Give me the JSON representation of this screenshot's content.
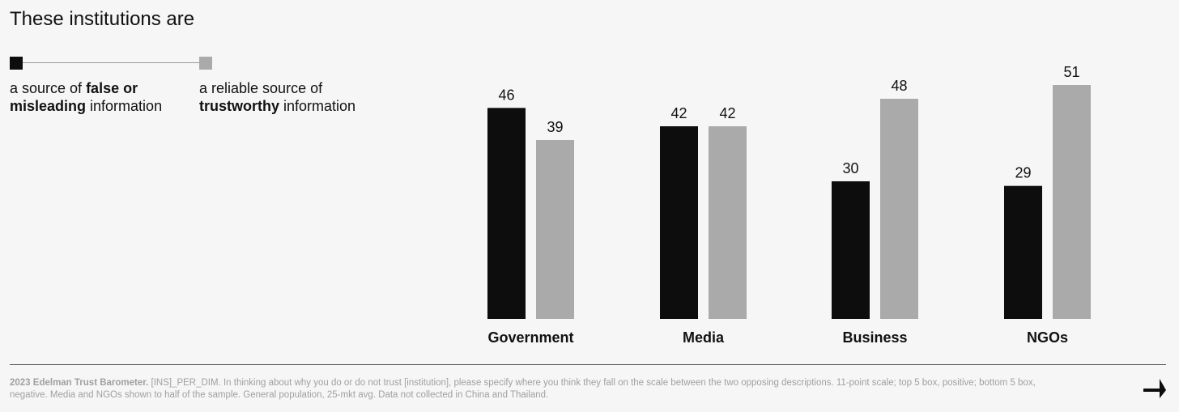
{
  "title": "These institutions are",
  "legend": [
    {
      "pre": "a source of ",
      "bold": "false or misleading",
      "post": " information",
      "color": "#0d0d0d"
    },
    {
      "pre": "a reliable source of ",
      "bold": "trustworthy",
      "post": " information",
      "color": "#aaaaaa"
    }
  ],
  "chart_data": {
    "type": "bar",
    "title": "These institutions are",
    "categories": [
      "Government",
      "Media",
      "Business",
      "NGOs"
    ],
    "series": [
      {
        "name": "a source of false or misleading information",
        "color": "#0d0d0d",
        "values": [
          46,
          42,
          30,
          29
        ]
      },
      {
        "name": "a reliable source of trustworthy information",
        "color": "#aaaaaa",
        "values": [
          39,
          42,
          48,
          51
        ]
      }
    ],
    "ylim": [
      0,
      51
    ],
    "xlabel": "",
    "ylabel": "",
    "grid": false
  },
  "footnote": {
    "source": "2023 Edelman Trust Barometer.",
    "text": " [INS]_PER_DIM. In thinking about why you do or do not trust [institution], please specify where you think they fall on the scale between the two opposing descriptions. 11-point scale; top 5 box, positive; bottom 5 box, negative. Media and NGOs shown to half of the sample. General population, 25-mkt avg. Data not collected in China and Thailand."
  },
  "nav": {
    "next_icon": "arrow-down-right-icon"
  }
}
